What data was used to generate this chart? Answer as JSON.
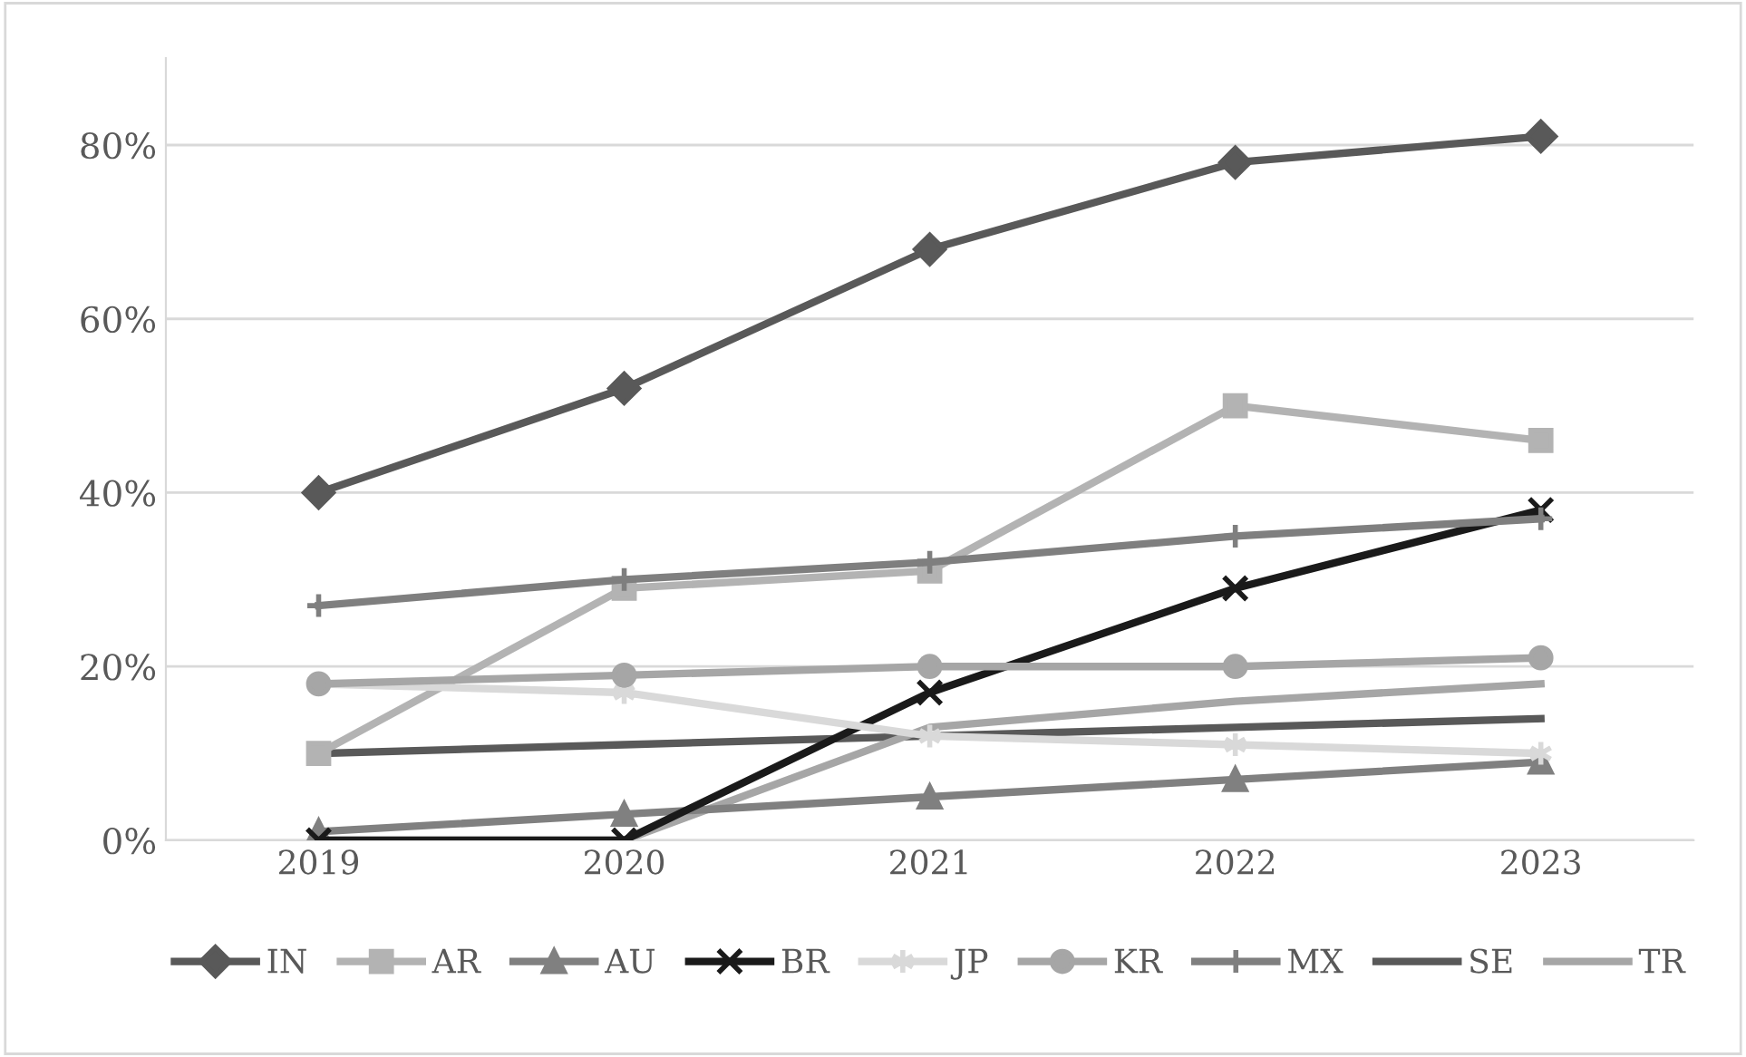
{
  "chart_data": {
    "type": "line",
    "categories": [
      "2019",
      "2020",
      "2021",
      "2022",
      "2023"
    ],
    "series": [
      {
        "name": "IN",
        "color": "#595959",
        "marker": "diamond",
        "values": [
          40,
          52,
          68,
          78,
          81
        ]
      },
      {
        "name": "AR",
        "color": "#b3b3b3",
        "marker": "square",
        "values": [
          10,
          29,
          31,
          50,
          46
        ]
      },
      {
        "name": "AU",
        "color": "#808080",
        "marker": "triangle",
        "values": [
          1,
          3,
          5,
          7,
          9
        ]
      },
      {
        "name": "BR",
        "color": "#1a1a1a",
        "marker": "cross",
        "values": [
          0,
          0,
          17,
          29,
          38
        ]
      },
      {
        "name": "JP",
        "color": "#d9d9d9",
        "marker": "cross",
        "values": [
          18,
          17,
          12,
          11,
          10
        ]
      },
      {
        "name": "KR",
        "color": "#a6a6a6",
        "marker": "circle",
        "values": [
          18,
          19,
          20,
          20,
          21
        ]
      },
      {
        "name": "MX",
        "color": "#7f7f7f",
        "marker": "plus",
        "values": [
          27,
          30,
          32,
          35,
          37
        ]
      },
      {
        "name": "SE",
        "color": "#595959",
        "marker": "none",
        "values": [
          10,
          11,
          12,
          13,
          14
        ]
      },
      {
        "name": "TR",
        "color": "#a6a6a6",
        "marker": "none",
        "values": [
          0,
          0,
          13,
          16,
          18
        ]
      }
    ],
    "ylim": [
      0,
      90
    ],
    "yticks": [
      {
        "value": 0,
        "label": "0%"
      },
      {
        "value": 20,
        "label": "20%"
      },
      {
        "value": 40,
        "label": "40%"
      },
      {
        "value": 60,
        "label": "60%"
      },
      {
        "value": 80,
        "label": "80%"
      }
    ],
    "grid": "y",
    "legend": "bottom",
    "line_style": "solid"
  }
}
